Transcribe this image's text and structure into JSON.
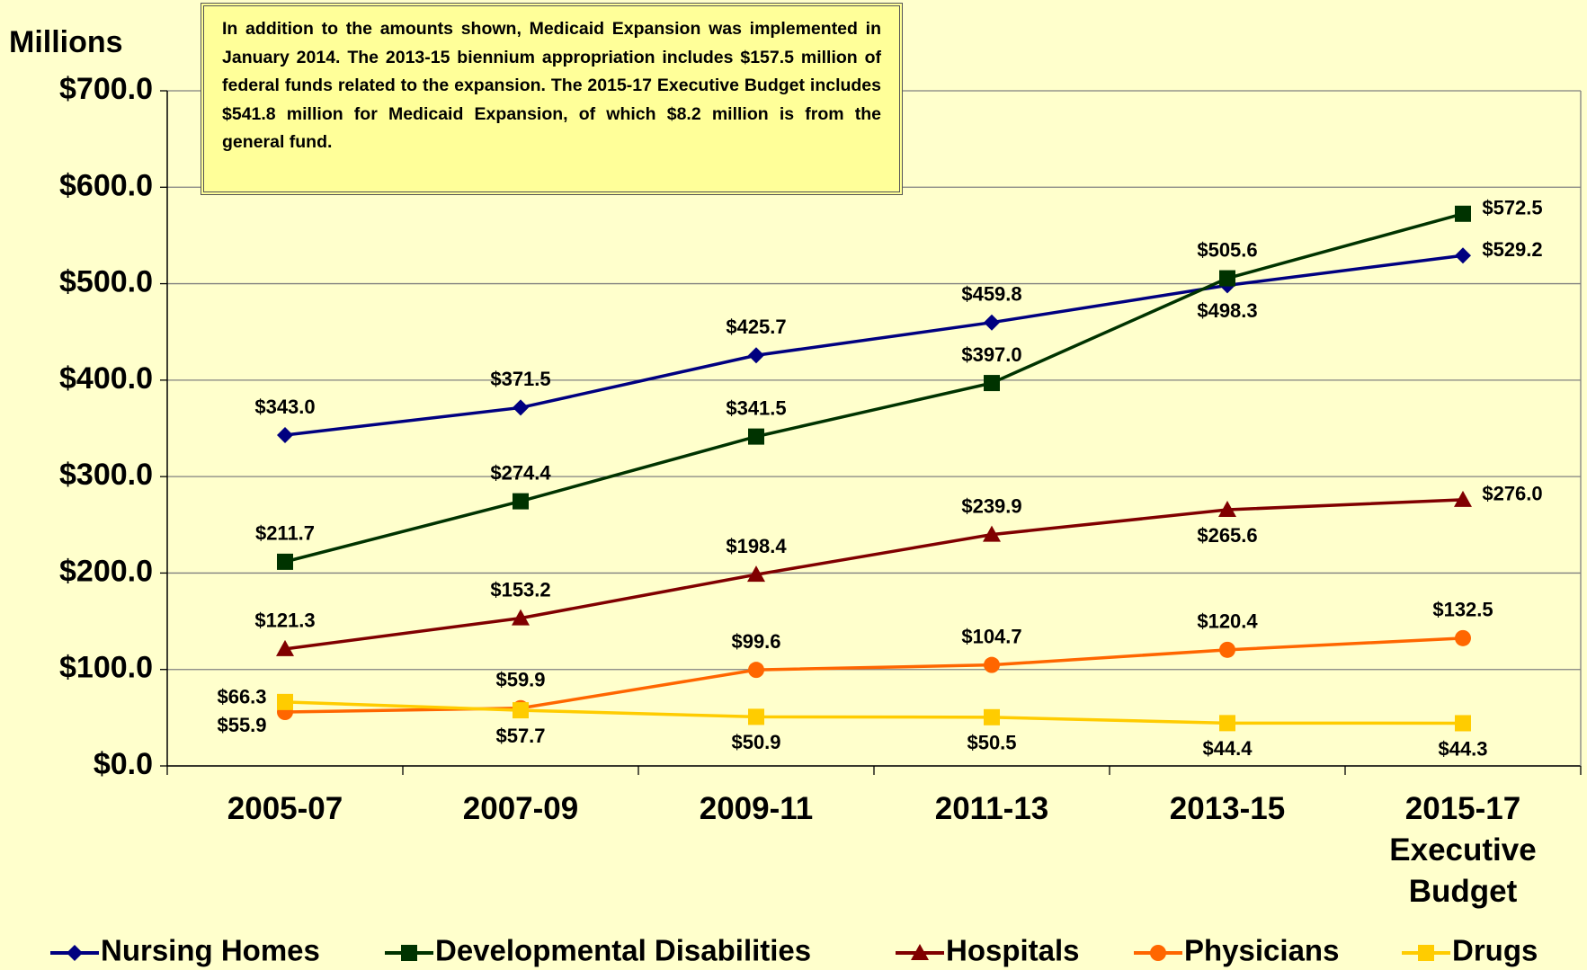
{
  "chart_data": {
    "type": "line",
    "y_label": "Millions",
    "annotation": "In addition to the amounts shown, Medicaid Expansion was implemented in January 2014. The 2013-15 biennium appropriation includes $157.5 million of federal funds related to the expansion. The 2015-17 Executive Budget includes $541.8 million for Medicaid Expansion, of which $8.2 million is from the general fund.",
    "categories": [
      "2005-07",
      "2007-09",
      "2009-11",
      "2011-13",
      "2013-15",
      "2015-17 Executive Budget"
    ],
    "ylim": [
      0,
      700
    ],
    "yticks": [
      {
        "value": 0,
        "label": "$0.0"
      },
      {
        "value": 100,
        "label": "$100.0"
      },
      {
        "value": 200,
        "label": "$200.0"
      },
      {
        "value": 300,
        "label": "$300.0"
      },
      {
        "value": 400,
        "label": "$400.0"
      },
      {
        "value": 500,
        "label": "$500.0"
      },
      {
        "value": 600,
        "label": "$600.0"
      },
      {
        "value": 700,
        "label": "$700.0"
      }
    ],
    "grid": true,
    "legend": "bottom",
    "series": [
      {
        "name": "Nursing Homes",
        "color": "#000080",
        "marker": "diamond",
        "values": [
          343.0,
          371.5,
          425.7,
          459.8,
          498.3,
          529.2
        ],
        "value_labels": [
          "$343.0",
          "$371.5",
          "$425.7",
          "$459.8",
          "$498.3",
          "$529.2"
        ]
      },
      {
        "name": "Developmental Disabilities",
        "color": "#003300",
        "marker": "square",
        "values": [
          211.7,
          274.4,
          341.5,
          397.0,
          505.6,
          572.5
        ],
        "value_labels": [
          "$211.7",
          "$274.4",
          "$341.5",
          "$397.0",
          "$505.6",
          "$572.5"
        ]
      },
      {
        "name": "Hospitals",
        "color": "#800000",
        "marker": "triangle",
        "values": [
          121.3,
          153.2,
          198.4,
          239.9,
          265.6,
          276.0
        ],
        "value_labels": [
          "$121.3",
          "$153.2",
          "$198.4",
          "$239.9",
          "$265.6",
          "$276.0"
        ]
      },
      {
        "name": "Physicians",
        "color": "#ff6600",
        "marker": "circle",
        "values": [
          55.9,
          59.9,
          99.6,
          104.7,
          120.4,
          132.5
        ],
        "value_labels": [
          "$55.9",
          "$59.9",
          "$99.6",
          "$104.7",
          "$120.4",
          "$132.5"
        ]
      },
      {
        "name": "Drugs",
        "color": "#ffcc00",
        "marker": "square",
        "values": [
          66.3,
          57.7,
          50.9,
          50.5,
          44.4,
          44.3
        ],
        "value_labels": [
          "$66.3",
          "$57.7",
          "$50.9",
          "$50.5",
          "$44.4",
          "$44.3"
        ]
      }
    ]
  }
}
